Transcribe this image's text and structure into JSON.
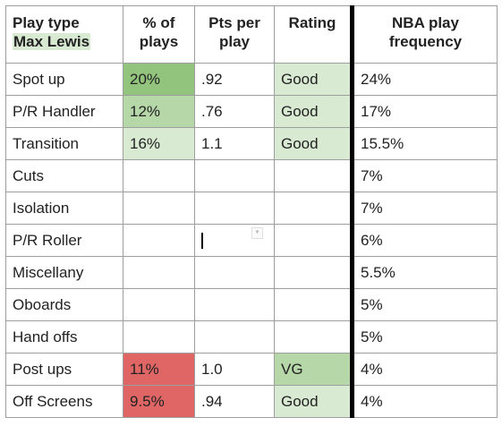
{
  "header": {
    "play_type_line1": "Play type",
    "play_type_name": "Max Lewis",
    "pct_line1": "% of",
    "pct_line2": "plays",
    "pts_line1": "Pts per",
    "pts_line2": "play",
    "rating": "Rating",
    "nba_line1": "NBA play",
    "nba_line2": "frequency"
  },
  "rows": [
    {
      "play": "Spot up",
      "pct": "20%",
      "pts": ".92",
      "rating": "Good",
      "nba": "24%"
    },
    {
      "play": "P/R Handler",
      "pct": "12%",
      "pts": ".76",
      "rating": "Good",
      "nba": "17%"
    },
    {
      "play": "Transition",
      "pct": "16%",
      "pts": "1.1",
      "rating": "Good",
      "nba": "15.5%"
    },
    {
      "play": "Cuts",
      "pct": "",
      "pts": "",
      "rating": "",
      "nba": "7%"
    },
    {
      "play": "Isolation",
      "pct": "",
      "pts": "",
      "rating": "",
      "nba": "7%"
    },
    {
      "play": "P/R Roller",
      "pct": "",
      "pts": "",
      "rating": "",
      "nba": "6%"
    },
    {
      "play": "Miscellany",
      "pct": "",
      "pts": "",
      "rating": "",
      "nba": "5.5%"
    },
    {
      "play": "Oboards",
      "pct": "",
      "pts": "",
      "rating": "",
      "nba": "5%"
    },
    {
      "play": "Hand offs",
      "pct": "",
      "pts": "",
      "rating": "",
      "nba": "5%"
    },
    {
      "play": "Post ups",
      "pct": "11%",
      "pts": "1.0",
      "rating": "VG",
      "nba": "4%"
    },
    {
      "play": "Off Screens",
      "pct": "9.5%",
      "pts": ".94",
      "rating": "Good",
      "nba": "4%"
    }
  ],
  "colors": {
    "green_strong": "#93c47d",
    "green_mid": "#b6d7a8",
    "green_light": "#d9ead3",
    "red": "#e06666",
    "thick_border": "#000000"
  },
  "icons": {
    "dropdown": "dropdown-arrow-icon"
  }
}
